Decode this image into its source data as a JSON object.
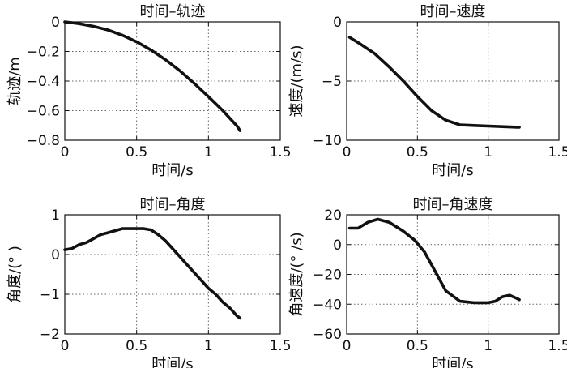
{
  "chart_data": [
    {
      "type": "line",
      "title": "时间–轨迹",
      "xlabel": "时间/s",
      "ylabel": "轨迹/m",
      "xlim": [
        0,
        1.5
      ],
      "ylim": [
        -0.8,
        0
      ],
      "xticks": [
        "0",
        "0.5",
        "1",
        "1.5"
      ],
      "yticks": [
        "0",
        "−0.2",
        "−0.4",
        "−0.6",
        "−0.8"
      ],
      "xtick_values": [
        0,
        0.5,
        1,
        1.5
      ],
      "ytick_values": [
        0,
        -0.2,
        -0.4,
        -0.6,
        -0.8
      ],
      "grid": true,
      "x": [
        0,
        0.1,
        0.2,
        0.3,
        0.4,
        0.5,
        0.6,
        0.7,
        0.8,
        0.9,
        1.0,
        1.1,
        1.2,
        1.22
      ],
      "y": [
        0,
        -0.012,
        -0.03,
        -0.055,
        -0.09,
        -0.135,
        -0.19,
        -0.255,
        -0.33,
        -0.415,
        -0.505,
        -0.6,
        -0.705,
        -0.735
      ]
    },
    {
      "type": "line",
      "title": "时间–速度",
      "xlabel": "时间/s",
      "ylabel": "速度/(m/s)",
      "xlim": [
        0,
        1.5
      ],
      "ylim": [
        -10,
        0
      ],
      "xticks": [
        "0",
        "0.5",
        "1",
        "1.5"
      ],
      "yticks": [
        "0",
        "−5",
        "−10"
      ],
      "xtick_values": [
        0,
        0.5,
        1,
        1.5
      ],
      "ytick_values": [
        0,
        -5,
        -10
      ],
      "grid": true,
      "x": [
        0.02,
        0.1,
        0.2,
        0.3,
        0.4,
        0.5,
        0.6,
        0.7,
        0.8,
        0.9,
        1.0,
        1.1,
        1.2,
        1.22
      ],
      "y": [
        -1.3,
        -1.9,
        -2.7,
        -3.8,
        -5.0,
        -6.3,
        -7.5,
        -8.3,
        -8.7,
        -8.75,
        -8.8,
        -8.85,
        -8.9,
        -8.9
      ]
    },
    {
      "type": "line",
      "title": "时间–角度",
      "xlabel": "时间/s",
      "ylabel": "角度/(° )",
      "xlim": [
        0,
        1.5
      ],
      "ylim": [
        -2,
        1
      ],
      "xticks": [
        "0",
        "0.5",
        "1",
        "1.5"
      ],
      "yticks": [
        "1",
        "0",
        "−1",
        "−2"
      ],
      "xtick_values": [
        0,
        0.5,
        1,
        1.5
      ],
      "ytick_values": [
        1,
        0,
        -1,
        -2
      ],
      "grid": true,
      "x": [
        0,
        0.05,
        0.1,
        0.15,
        0.2,
        0.25,
        0.3,
        0.35,
        0.4,
        0.45,
        0.5,
        0.55,
        0.6,
        0.65,
        0.7,
        0.75,
        0.8,
        0.85,
        0.9,
        0.95,
        1.0,
        1.05,
        1.1,
        1.15,
        1.2,
        1.22
      ],
      "y": [
        0.12,
        0.15,
        0.25,
        0.3,
        0.4,
        0.5,
        0.55,
        0.6,
        0.65,
        0.65,
        0.65,
        0.65,
        0.62,
        0.5,
        0.35,
        0.15,
        -0.05,
        -0.25,
        -0.45,
        -0.65,
        -0.85,
        -1.0,
        -1.2,
        -1.35,
        -1.55,
        -1.6
      ]
    },
    {
      "type": "line",
      "title": "时间–角速度",
      "xlabel": "时间/s",
      "ylabel": "角速度/(° /s)",
      "xlim": [
        0,
        1.5
      ],
      "ylim": [
        -60,
        20
      ],
      "xticks": [
        "0",
        "0.5",
        "1",
        "1.5"
      ],
      "yticks": [
        "20",
        "0",
        "−20",
        "−40",
        "−60"
      ],
      "xtick_values": [
        0,
        0.5,
        1,
        1.5
      ],
      "ytick_values": [
        20,
        0,
        -20,
        -40,
        -60
      ],
      "grid": true,
      "x": [
        0.02,
        0.08,
        0.15,
        0.22,
        0.3,
        0.4,
        0.48,
        0.55,
        0.62,
        0.7,
        0.8,
        0.9,
        1.0,
        1.05,
        1.1,
        1.15,
        1.2,
        1.22
      ],
      "y": [
        11,
        11,
        15,
        17,
        15,
        9,
        3,
        -5,
        -17,
        -31,
        -38,
        -39,
        -39,
        -38,
        -35,
        -34,
        -36,
        -37
      ]
    }
  ]
}
